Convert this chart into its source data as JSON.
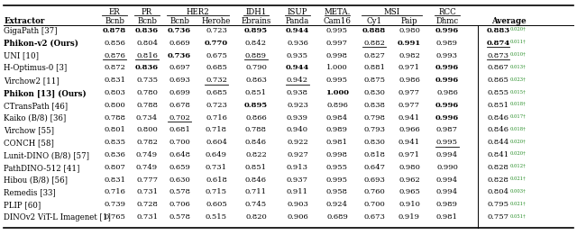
{
  "rows": [
    {
      "name": "GigaPath [37]",
      "bold_name": false,
      "vals": [
        "0.878",
        "0.836",
        "0.736",
        "0.723",
        "0.895",
        "0.944",
        "0.995",
        "0.888",
        "0.980",
        "0.996",
        "0.883"
      ],
      "bold": [
        true,
        true,
        true,
        false,
        true,
        true,
        false,
        true,
        false,
        true,
        true
      ],
      "ul": [
        false,
        false,
        false,
        false,
        false,
        false,
        false,
        false,
        false,
        false,
        false
      ],
      "sup": "0.020†",
      "ul_avg": false
    },
    {
      "name": "Phikon-v2 (Ours)",
      "bold_name": true,
      "vals": [
        "0.856",
        "0.804",
        "0.669",
        "0.770",
        "0.842",
        "0.936",
        "0.997",
        "0.882",
        "0.991",
        "0.989",
        "0.874"
      ],
      "bold": [
        false,
        false,
        false,
        true,
        false,
        false,
        false,
        false,
        true,
        false,
        true
      ],
      "ul": [
        false,
        false,
        false,
        false,
        false,
        false,
        false,
        true,
        false,
        false,
        true
      ],
      "sup": "0.011†",
      "ul_avg": true
    },
    {
      "name": "UNI [10]",
      "bold_name": false,
      "vals": [
        "0.876",
        "0.816",
        "0.736",
        "0.675",
        "0.889",
        "0.935",
        "0.998",
        "0.827",
        "0.982",
        "0.993",
        "0.873"
      ],
      "bold": [
        false,
        false,
        true,
        false,
        false,
        false,
        false,
        false,
        false,
        false,
        false
      ],
      "ul": [
        true,
        true,
        false,
        false,
        true,
        false,
        false,
        false,
        false,
        false,
        true
      ],
      "sup": "0.010†",
      "ul_avg": false
    },
    {
      "name": "H-Optimus-0 [3]",
      "bold_name": false,
      "vals": [
        "0.872",
        "0.836",
        "0.697",
        "0.685",
        "0.790",
        "0.944",
        "1.000",
        "0.881",
        "0.971",
        "0.996",
        "0.867"
      ],
      "bold": [
        false,
        true,
        false,
        false,
        false,
        true,
        false,
        false,
        false,
        true,
        false
      ],
      "ul": [
        false,
        false,
        false,
        false,
        false,
        false,
        false,
        false,
        false,
        false,
        false
      ],
      "sup": "0.013†",
      "ul_avg": false
    },
    {
      "name": "Virchow2 [11]",
      "bold_name": false,
      "vals": [
        "0.831",
        "0.735",
        "0.693",
        "0.732",
        "0.863",
        "0.942",
        "0.995",
        "0.875",
        "0.986",
        "0.996",
        "0.865"
      ],
      "bold": [
        false,
        false,
        false,
        false,
        false,
        false,
        false,
        false,
        false,
        true,
        false
      ],
      "ul": [
        false,
        false,
        false,
        true,
        false,
        true,
        false,
        false,
        false,
        false,
        false
      ],
      "sup": "0.023†",
      "ul_avg": false
    },
    {
      "name": "Phikon [13] (Ours)",
      "bold_name": true,
      "vals": [
        "0.803",
        "0.780",
        "0.699",
        "0.685",
        "0.851",
        "0.938",
        "1.000",
        "0.830",
        "0.977",
        "0.986",
        "0.855"
      ],
      "bold": [
        false,
        false,
        false,
        false,
        false,
        false,
        true,
        false,
        false,
        false,
        false
      ],
      "ul": [
        false,
        false,
        false,
        false,
        false,
        false,
        false,
        false,
        false,
        false,
        false
      ],
      "sup": "0.015†",
      "ul_avg": false
    },
    {
      "name": "CTransPath [46]",
      "bold_name": false,
      "vals": [
        "0.800",
        "0.788",
        "0.678",
        "0.723",
        "0.895",
        "0.923",
        "0.896",
        "0.838",
        "0.977",
        "0.996",
        "0.851"
      ],
      "bold": [
        false,
        false,
        false,
        false,
        true,
        false,
        false,
        false,
        false,
        true,
        false
      ],
      "ul": [
        false,
        false,
        false,
        false,
        false,
        false,
        false,
        false,
        false,
        false,
        false
      ],
      "sup": "0.018†",
      "ul_avg": false
    },
    {
      "name": "Kaiko (B/8) [36]",
      "bold_name": false,
      "vals": [
        "0.788",
        "0.734",
        "0.702",
        "0.716",
        "0.866",
        "0.939",
        "0.984",
        "0.798",
        "0.941",
        "0.996",
        "0.846"
      ],
      "bold": [
        false,
        false,
        false,
        false,
        false,
        false,
        false,
        false,
        false,
        true,
        false
      ],
      "ul": [
        false,
        false,
        true,
        false,
        false,
        false,
        false,
        false,
        false,
        false,
        false
      ],
      "sup": "0.017†",
      "ul_avg": false
    },
    {
      "name": "Virchow [55]",
      "bold_name": false,
      "vals": [
        "0.801",
        "0.800",
        "0.681",
        "0.718",
        "0.788",
        "0.940",
        "0.989",
        "0.793",
        "0.966",
        "0.987",
        "0.846"
      ],
      "bold": [
        false,
        false,
        false,
        false,
        false,
        false,
        false,
        false,
        false,
        false,
        false
      ],
      "ul": [
        false,
        false,
        false,
        false,
        false,
        false,
        false,
        false,
        false,
        false,
        false
      ],
      "sup": "0.018†",
      "ul_avg": false
    },
    {
      "name": "CONCH [58]",
      "bold_name": false,
      "vals": [
        "0.835",
        "0.782",
        "0.700",
        "0.604",
        "0.846",
        "0.922",
        "0.981",
        "0.830",
        "0.941",
        "0.995",
        "0.844"
      ],
      "bold": [
        false,
        false,
        false,
        false,
        false,
        false,
        false,
        false,
        false,
        false,
        false
      ],
      "ul": [
        false,
        false,
        false,
        false,
        false,
        false,
        false,
        false,
        false,
        true,
        false
      ],
      "sup": "0.020†",
      "ul_avg": false
    },
    {
      "name": "Lunit-DINO (B/8) [57]",
      "bold_name": false,
      "vals": [
        "0.836",
        "0.749",
        "0.648",
        "0.649",
        "0.822",
        "0.927",
        "0.998",
        "0.818",
        "0.971",
        "0.994",
        "0.841"
      ],
      "bold": [
        false,
        false,
        false,
        false,
        false,
        false,
        false,
        false,
        false,
        false,
        false
      ],
      "ul": [
        false,
        false,
        false,
        false,
        false,
        false,
        false,
        false,
        false,
        false,
        false
      ],
      "sup": "0.020†",
      "ul_avg": false
    },
    {
      "name": "PathDINO-512 [41]",
      "bold_name": false,
      "vals": [
        "0.807",
        "0.749",
        "0.659",
        "0.731",
        "0.851",
        "0.913",
        "0.955",
        "0.647",
        "0.980",
        "0.990",
        "0.828"
      ],
      "bold": [
        false,
        false,
        false,
        false,
        false,
        false,
        false,
        false,
        false,
        false,
        false
      ],
      "ul": [
        false,
        false,
        false,
        false,
        false,
        false,
        false,
        false,
        false,
        false,
        false
      ],
      "sup": "0.012†",
      "ul_avg": false
    },
    {
      "name": "Hibou (B/8) [56]",
      "bold_name": false,
      "vals": [
        "0.831",
        "0.777",
        "0.630",
        "0.618",
        "0.846",
        "0.937",
        "0.995",
        "0.693",
        "0.962",
        "0.994",
        "0.828"
      ],
      "bold": [
        false,
        false,
        false,
        false,
        false,
        false,
        false,
        false,
        false,
        false,
        false
      ],
      "ul": [
        false,
        false,
        false,
        false,
        false,
        false,
        false,
        false,
        false,
        false,
        false
      ],
      "sup": "0.021†",
      "ul_avg": false
    },
    {
      "name": "Remedis [33]",
      "bold_name": false,
      "vals": [
        "0.716",
        "0.731",
        "0.578",
        "0.715",
        "0.711",
        "0.911",
        "0.958",
        "0.760",
        "0.965",
        "0.994",
        "0.804"
      ],
      "bold": [
        false,
        false,
        false,
        false,
        false,
        false,
        false,
        false,
        false,
        false,
        false
      ],
      "ul": [
        false,
        false,
        false,
        false,
        false,
        false,
        false,
        false,
        false,
        false,
        false
      ],
      "sup": "0.003†",
      "ul_avg": false
    },
    {
      "name": "PLIP [60]",
      "bold_name": false,
      "vals": [
        "0.739",
        "0.728",
        "0.706",
        "0.605",
        "0.745",
        "0.903",
        "0.924",
        "0.700",
        "0.910",
        "0.989",
        "0.795"
      ],
      "bold": [
        false,
        false,
        false,
        false,
        false,
        false,
        false,
        false,
        false,
        false,
        false
      ],
      "ul": [
        false,
        false,
        false,
        false,
        false,
        false,
        false,
        false,
        false,
        false,
        false
      ],
      "sup": "0.021†",
      "ul_avg": false
    },
    {
      "name": "DINOv2 ViT-L Imagenet [1]",
      "bold_name": false,
      "vals": [
        "0.765",
        "0.731",
        "0.578",
        "0.515",
        "0.820",
        "0.906",
        "0.689",
        "0.673",
        "0.919",
        "0.981",
        "0.757"
      ],
      "bold": [
        false,
        false,
        false,
        false,
        false,
        false,
        false,
        false,
        false,
        false,
        false
      ],
      "ul": [
        false,
        false,
        false,
        false,
        false,
        false,
        false,
        false,
        false,
        false,
        false
      ],
      "sup": "0.051†",
      "ul_avg": false
    }
  ],
  "col_groups": [
    {
      "label": "ER",
      "cols": [
        0,
        0
      ]
    },
    {
      "label": "PR",
      "cols": [
        1,
        1
      ]
    },
    {
      "label": "HER2",
      "cols": [
        2,
        3
      ]
    },
    {
      "label": "IDH1",
      "cols": [
        4,
        4
      ]
    },
    {
      "label": "ISUP",
      "cols": [
        5,
        5
      ]
    },
    {
      "label": "META.",
      "cols": [
        6,
        6
      ]
    },
    {
      "label": "MSI",
      "cols": [
        7,
        8
      ]
    },
    {
      "label": "RCC",
      "cols": [
        9,
        9
      ]
    }
  ],
  "sub_headers": [
    "Bcnb",
    "Bcnb",
    "Bcnb",
    "Herohe",
    "Ebrains",
    "Panda",
    "Cam16",
    "Cy1",
    "Paip",
    "Dhmc"
  ],
  "fs_name": 6.2,
  "fs_val": 6.0,
  "fs_hdr": 6.2,
  "fs_sup": 3.8
}
